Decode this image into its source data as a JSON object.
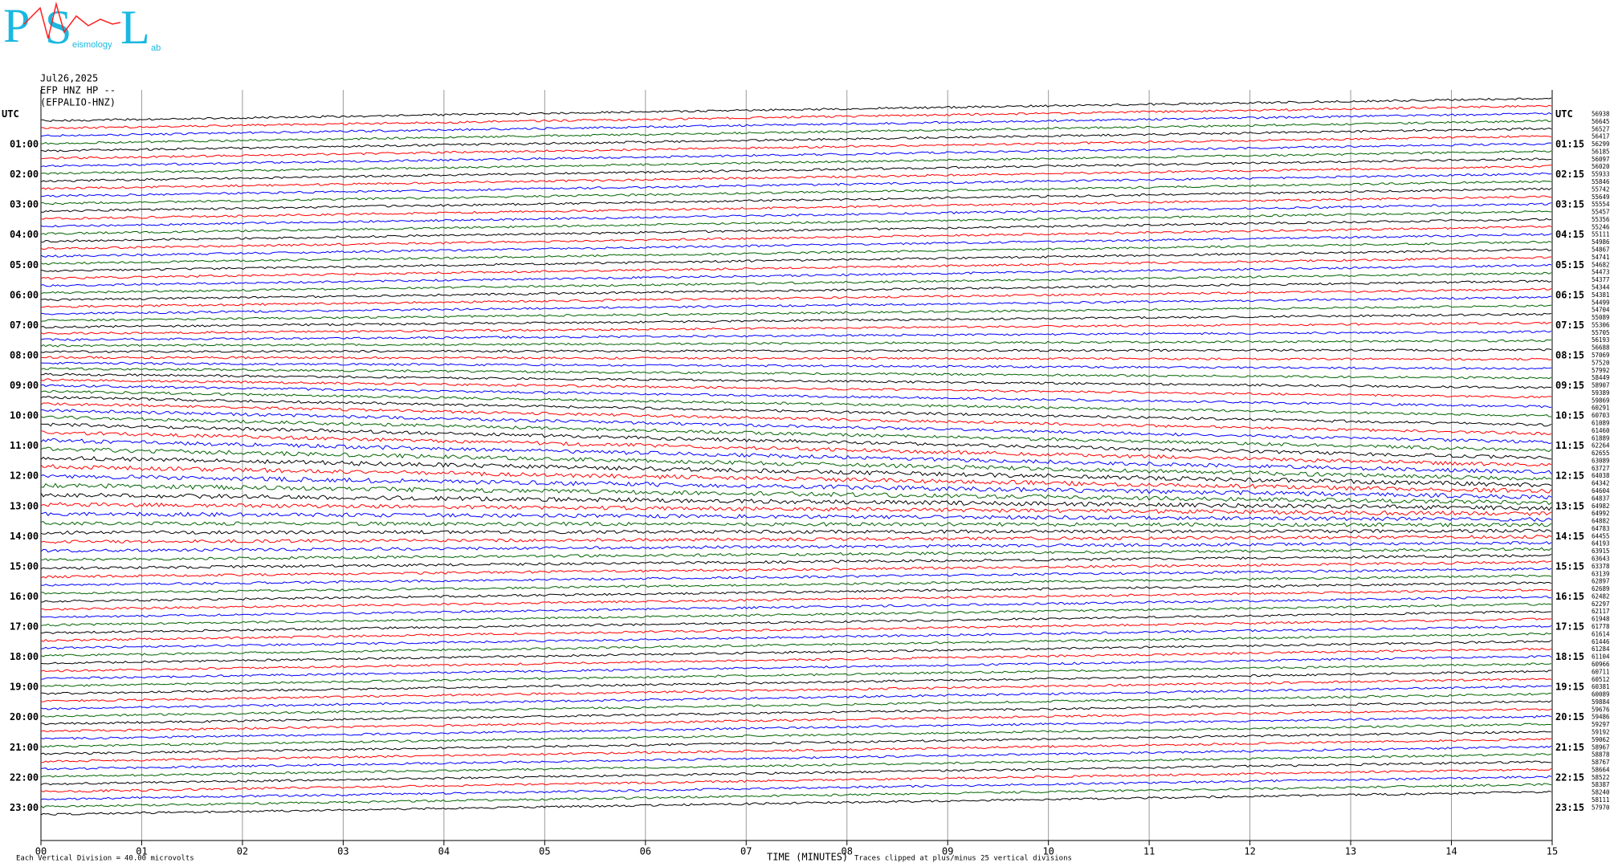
{
  "logo": {
    "letters": [
      "P",
      "S",
      "L"
    ],
    "words": [
      "eismology",
      "ab"
    ]
  },
  "header": {
    "date": "Jul26,2025",
    "channel": "EFP HNZ HP --",
    "station": "(EFPALIO-HNZ)"
  },
  "left_labels": [
    "UTC",
    "01:00",
    "02:00",
    "03:00",
    "04:00",
    "05:00",
    "06:00",
    "07:00",
    "08:00",
    "09:00",
    "10:00",
    "11:00",
    "12:00",
    "13:00",
    "14:00",
    "15:00",
    "16:00",
    "17:00",
    "18:00",
    "19:00",
    "20:00",
    "21:00",
    "22:00",
    "23:00"
  ],
  "right_labels": [
    "UTC",
    "01:15",
    "02:15",
    "03:15",
    "04:15",
    "05:15",
    "06:15",
    "07:15",
    "08:15",
    "09:15",
    "10:15",
    "11:15",
    "12:15",
    "13:15",
    "14:15",
    "15:15",
    "16:15",
    "17:15",
    "18:15",
    "19:15",
    "20:15",
    "21:15",
    "22:15",
    "23:15"
  ],
  "right_values": [
    56938,
    56645,
    56527,
    56417,
    56299,
    56185,
    56097,
    56020,
    55933,
    55846,
    55742,
    55649,
    55554,
    55457,
    55356,
    55246,
    55111,
    54986,
    54867,
    54741,
    54682,
    54473,
    54377,
    54344,
    54381,
    54499,
    54704,
    55089,
    55306,
    55705,
    56193,
    56688,
    57069,
    57520,
    57992,
    58449,
    58907,
    59389,
    59869,
    60291,
    60703,
    61089,
    61460,
    61889,
    62264,
    62655,
    63089,
    63727,
    64038,
    64342,
    64604,
    64837,
    64982,
    64992,
    64882,
    64783,
    64455,
    64193,
    63915,
    63643,
    63378,
    63139,
    62897,
    62689,
    62482,
    62297,
    62117,
    61948,
    61778,
    61614,
    61446,
    61284,
    61104,
    60966,
    60711,
    60512,
    60381,
    60089,
    59884,
    59676,
    59486,
    59297,
    59192,
    59062,
    58967,
    58878,
    58767,
    58664,
    58522,
    58387,
    58240,
    58111,
    57970
  ],
  "x_labels": [
    "00",
    "01",
    "02",
    "03",
    "04",
    "05",
    "06",
    "07",
    "08",
    "09",
    "10",
    "11",
    "12",
    "13",
    "14",
    "15"
  ],
  "footer": {
    "division": "Each Vertical Division =",
    "scale": "40.00 microvolts",
    "axis_title": "TIME (MINUTES)",
    "clip_note": "Traces clipped at plus/minus 25 vertical divisions"
  },
  "trace_colors": [
    "#000000",
    "#ff0000",
    "#0000ff",
    "#006400"
  ]
}
